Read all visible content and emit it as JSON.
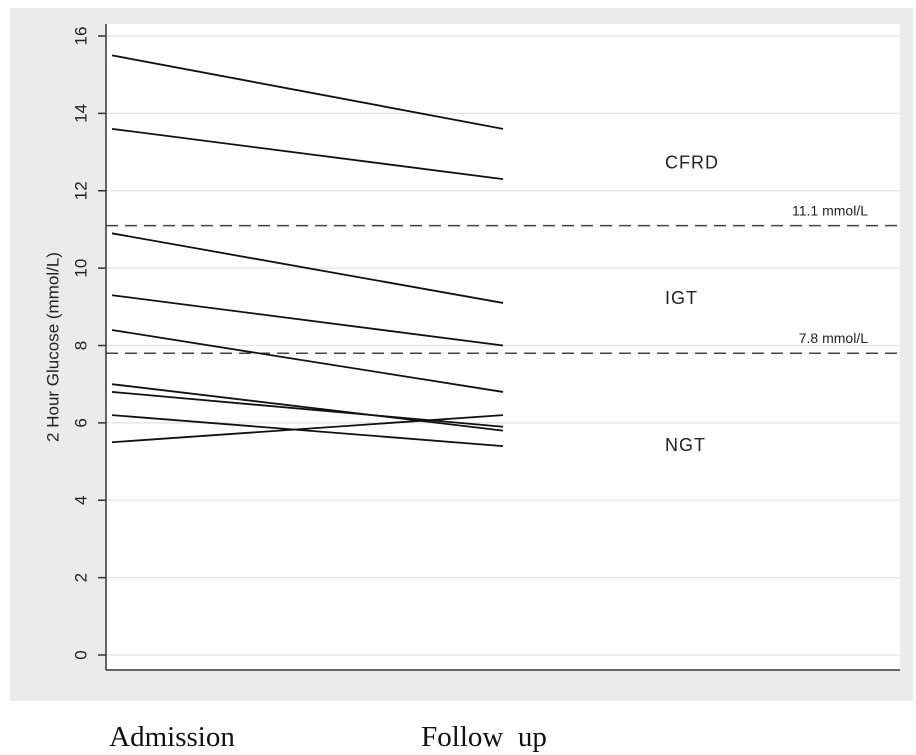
{
  "chart_data": {
    "type": "line",
    "categories": [
      "Admission",
      "Follow  up"
    ],
    "ylabel": "2 Hour Glucose (mmol/L)",
    "ylim": [
      0,
      16
    ],
    "yticks": [
      "0",
      "2",
      "4",
      "6",
      "8",
      "10",
      "12",
      "14",
      "16"
    ],
    "grid": true,
    "series": [
      {
        "values": [
          15.5,
          13.6
        ]
      },
      {
        "values": [
          13.6,
          12.3
        ]
      },
      {
        "values": [
          10.9,
          9.1
        ]
      },
      {
        "values": [
          9.3,
          8.0
        ]
      },
      {
        "values": [
          8.4,
          6.8
        ]
      },
      {
        "values": [
          7.0,
          5.8
        ]
      },
      {
        "values": [
          6.8,
          5.9
        ]
      },
      {
        "values": [
          6.2,
          5.4
        ]
      },
      {
        "values": [
          5.5,
          6.2
        ]
      }
    ],
    "reference_lines": [
      {
        "value": 11.1,
        "label": "11.1 mmol/L",
        "style": "dashed"
      },
      {
        "value": 7.8,
        "label": "7.8 mmol/L",
        "style": "dashed"
      }
    ],
    "annotations": [
      {
        "text": "CFRD",
        "y": 12.7
      },
      {
        "text": "IGT",
        "y": 9.2
      },
      {
        "text": "NGT",
        "y": 5.4
      }
    ]
  },
  "colors": {
    "panel": "#ebebeb",
    "plot": "#ffffff",
    "grid": "#e2e2e2",
    "line": "#111111",
    "axis": "#333333"
  }
}
